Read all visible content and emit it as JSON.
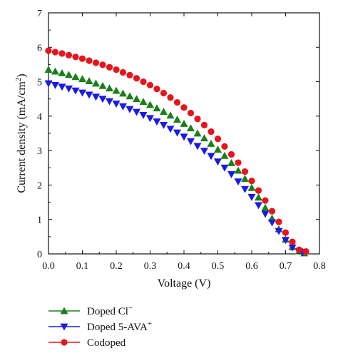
{
  "chart_data": {
    "type": "scatter",
    "xlabel": "Voltage (V)",
    "ylabel_main": "Current density (mA/cm",
    "ylabel_sup": "2",
    "ylabel_close": ")",
    "xlim": [
      0.0,
      0.8
    ],
    "ylim": [
      0,
      7
    ],
    "x_ticks": [
      "0.0",
      "0.1",
      "0.2",
      "0.3",
      "0.4",
      "0.5",
      "0.6",
      "0.7",
      "0.8"
    ],
    "y_ticks": [
      "0",
      "1",
      "2",
      "3",
      "4",
      "5",
      "6",
      "7"
    ],
    "grid": false,
    "legend_position": "below",
    "series": [
      {
        "name": "Doped Cl",
        "name_sup": "−",
        "marker": "triangle-up",
        "color": "#1a7f1a",
        "x": [
          0.0,
          0.02,
          0.04,
          0.06,
          0.08,
          0.1,
          0.12,
          0.14,
          0.16,
          0.18,
          0.2,
          0.22,
          0.24,
          0.26,
          0.28,
          0.3,
          0.32,
          0.34,
          0.36,
          0.38,
          0.4,
          0.42,
          0.44,
          0.46,
          0.48,
          0.5,
          0.52,
          0.54,
          0.56,
          0.58,
          0.6,
          0.62,
          0.64,
          0.66,
          0.68,
          0.7,
          0.72,
          0.74,
          0.755
        ],
        "y": [
          5.35,
          5.3,
          5.25,
          5.2,
          5.14,
          5.08,
          5.02,
          4.95,
          4.88,
          4.81,
          4.74,
          4.66,
          4.58,
          4.5,
          4.42,
          4.33,
          4.23,
          4.13,
          4.02,
          3.9,
          3.78,
          3.65,
          3.5,
          3.36,
          3.2,
          3.03,
          2.85,
          2.64,
          2.42,
          2.18,
          1.92,
          1.64,
          1.34,
          1.03,
          0.72,
          0.42,
          0.2,
          0.08,
          0.02
        ]
      },
      {
        "name": "Doped 5-AVA",
        "name_sup": "+",
        "marker": "triangle-down",
        "color": "#1a1ae6",
        "x": [
          0.0,
          0.02,
          0.04,
          0.06,
          0.08,
          0.1,
          0.12,
          0.14,
          0.16,
          0.18,
          0.2,
          0.22,
          0.24,
          0.26,
          0.28,
          0.3,
          0.32,
          0.34,
          0.36,
          0.38,
          0.4,
          0.42,
          0.44,
          0.46,
          0.48,
          0.5,
          0.52,
          0.54,
          0.56,
          0.58,
          0.6,
          0.62,
          0.64,
          0.66,
          0.68,
          0.7,
          0.72,
          0.74,
          0.75
        ],
        "y": [
          4.95,
          4.9,
          4.85,
          4.8,
          4.74,
          4.68,
          4.62,
          4.56,
          4.5,
          4.43,
          4.36,
          4.28,
          4.2,
          4.12,
          4.03,
          3.94,
          3.84,
          3.74,
          3.63,
          3.52,
          3.4,
          3.27,
          3.13,
          2.99,
          2.84,
          2.68,
          2.5,
          2.31,
          2.1,
          1.88,
          1.65,
          1.41,
          1.16,
          0.91,
          0.66,
          0.4,
          0.18,
          0.08,
          0.05
        ]
      },
      {
        "name": "Codoped",
        "name_sup": "",
        "marker": "circle",
        "color": "#e8141c",
        "x": [
          0.0,
          0.02,
          0.04,
          0.06,
          0.08,
          0.1,
          0.12,
          0.14,
          0.16,
          0.18,
          0.2,
          0.22,
          0.24,
          0.26,
          0.28,
          0.3,
          0.32,
          0.34,
          0.36,
          0.38,
          0.4,
          0.42,
          0.44,
          0.46,
          0.48,
          0.5,
          0.52,
          0.54,
          0.56,
          0.58,
          0.6,
          0.62,
          0.64,
          0.66,
          0.68,
          0.7,
          0.72,
          0.74,
          0.76
        ],
        "y": [
          5.9,
          5.86,
          5.82,
          5.77,
          5.72,
          5.67,
          5.61,
          5.55,
          5.49,
          5.42,
          5.35,
          5.27,
          5.19,
          5.1,
          5.0,
          4.9,
          4.79,
          4.67,
          4.54,
          4.4,
          4.25,
          4.09,
          3.92,
          3.74,
          3.55,
          3.34,
          3.12,
          2.89,
          2.65,
          2.39,
          2.12,
          1.84,
          1.55,
          1.24,
          0.93,
          0.62,
          0.35,
          0.12,
          0.07
        ]
      }
    ]
  }
}
